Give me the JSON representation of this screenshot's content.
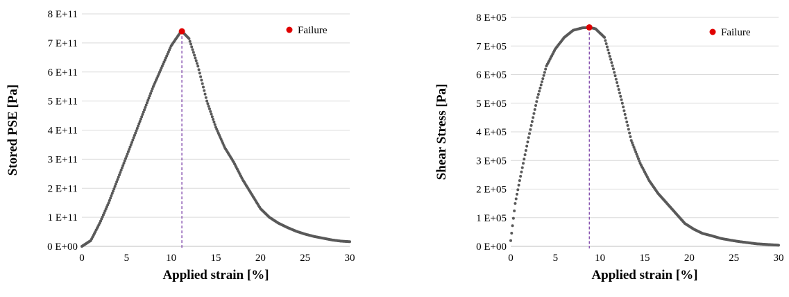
{
  "colors": {
    "points": "#595959",
    "failure": "#e00000",
    "failure_line": "#7030a0",
    "gridlines": "#d9d9d9",
    "axis": "#bfbfbf"
  },
  "chart_data": [
    {
      "type": "scatter",
      "xlabel": "Applied strain [%]",
      "ylabel": "Stored PSE [Pa]",
      "xlim": [
        0,
        30
      ],
      "ylim": [
        0,
        800000000000
      ],
      "x_ticks": [
        0,
        5,
        10,
        15,
        20,
        25,
        30
      ],
      "x_tick_labels": [
        "0",
        "5",
        "10",
        "15",
        "20",
        "25",
        "30"
      ],
      "y_ticks": [
        0,
        100000000000,
        200000000000,
        300000000000,
        400000000000,
        500000000000,
        600000000000,
        700000000000,
        800000000000
      ],
      "y_tick_labels": [
        "0 E+00",
        "1 E+11",
        "2 E+11",
        "3 E+11",
        "4 E+11",
        "5 E+11",
        "6 E+11",
        "7 E+11",
        "8 E+11"
      ],
      "grid": true,
      "legend": "top-right",
      "series": [
        {
          "x": [
            0,
            1,
            2,
            3,
            4,
            5,
            6,
            7,
            8,
            9,
            10,
            11,
            11.2,
            12,
            13,
            14,
            15,
            16,
            17,
            18,
            19,
            20,
            21,
            22,
            23,
            24,
            25,
            26,
            27,
            28,
            29,
            30
          ],
          "y": [
            0,
            20000000000,
            80000000000,
            150000000000,
            230000000000,
            310000000000,
            390000000000,
            470000000000,
            550000000000,
            620000000000,
            690000000000,
            735000000000,
            740000000000,
            715000000000,
            620000000000,
            500000000000,
            410000000000,
            340000000000,
            290000000000,
            230000000000,
            180000000000,
            130000000000,
            100000000000,
            80000000000,
            65000000000,
            52000000000,
            42000000000,
            34000000000,
            28000000000,
            22000000000,
            18000000000,
            16000000000
          ]
        },
        {
          "name": "Failure",
          "x": [
            11.2
          ],
          "y": [
            740000000000
          ]
        }
      ],
      "failure_x": 11.2
    },
    {
      "type": "scatter",
      "xlabel": "Applied strain [%]",
      "ylabel": "Shear Stress [Pa]",
      "xlim": [
        0,
        30
      ],
      "ylim": [
        0,
        800000
      ],
      "x_ticks": [
        0,
        5,
        10,
        15,
        20,
        25,
        30
      ],
      "x_tick_labels": [
        "0",
        "5",
        "10",
        "15",
        "20",
        "25",
        "30"
      ],
      "y_ticks": [
        0,
        100000,
        200000,
        300000,
        400000,
        500000,
        600000,
        700000,
        800000
      ],
      "y_tick_labels": [
        "0 E+00",
        "1 E+05",
        "2 E+05",
        "3 E+05",
        "4 E+05",
        "5 E+05",
        "6 E+05",
        "7 E+05",
        "8 E+05"
      ],
      "grid": true,
      "legend": "top-right",
      "series": [
        {
          "x": [
            0,
            0.5,
            1,
            2,
            3,
            4,
            5,
            6,
            7,
            8,
            8.8,
            9.5,
            10.5,
            11.5,
            12.5,
            13.5,
            14.5,
            15.5,
            16.5,
            17.5,
            18.5,
            19.5,
            20.5,
            21.5,
            22.5,
            23.5,
            24.5,
            25.5,
            26.5,
            27.5,
            28.5,
            29.5,
            30
          ],
          "y": [
            20000,
            150000,
            230000,
            380000,
            520000,
            630000,
            690000,
            730000,
            755000,
            763000,
            765000,
            760000,
            730000,
            620000,
            500000,
            370000,
            290000,
            230000,
            185000,
            150000,
            115000,
            80000,
            60000,
            45000,
            37000,
            28000,
            22000,
            17000,
            13000,
            9000,
            7000,
            5000,
            4000
          ]
        },
        {
          "name": "Failure",
          "x": [
            8.8
          ],
          "y": [
            765000
          ]
        }
      ],
      "failure_x": 8.8
    }
  ]
}
